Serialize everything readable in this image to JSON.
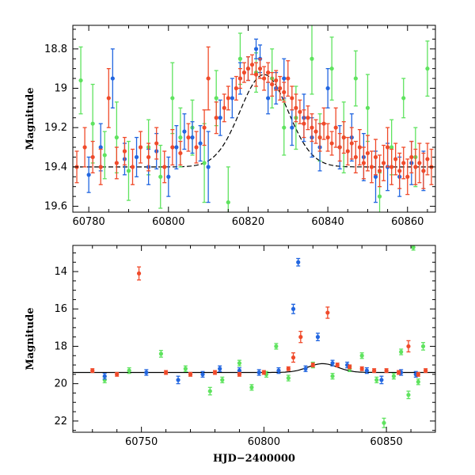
{
  "chart_data": [
    {
      "type": "scatter",
      "title": "",
      "xlabel": "",
      "ylabel": "Magnitude",
      "xlim": [
        60776,
        60867
      ],
      "ylim": [
        19.63,
        18.68
      ],
      "y_inverted": true,
      "xticks": [
        60780,
        60800,
        60820,
        60840,
        60860
      ],
      "xtick_labels": [
        "60780",
        "60800",
        "60820",
        "60840",
        "60860"
      ],
      "yticks": [
        18.8,
        19,
        19.2,
        19.4,
        19.6
      ],
      "ytick_labels": [
        "18.8",
        "19",
        "19.2",
        "19.4",
        "19.6"
      ],
      "grid": false,
      "legend": "none",
      "series": [
        {
          "color": "#5fe35f",
          "points": [
            [
              60778,
              18.96,
              0.17
            ],
            [
              60781,
              19.18,
              0.2
            ],
            [
              60784,
              19.34,
              0.12
            ],
            [
              60787,
              19.25,
              0.18
            ],
            [
              60790,
              19.42,
              0.15
            ],
            [
              60795,
              19.3,
              0.14
            ],
            [
              60798,
              19.45,
              0.16
            ],
            [
              60801,
              19.05,
              0.18
            ],
            [
              60803,
              19.25,
              0.15
            ],
            [
              60806,
              19.2,
              0.14
            ],
            [
              60809,
              19.38,
              0.2
            ],
            [
              60812,
              19.05,
              0.14
            ],
            [
              60815,
              19.58,
              0.18
            ],
            [
              60818,
              18.85,
              0.13
            ],
            [
              60822,
              18.92,
              0.1
            ],
            [
              60826,
              18.95,
              0.15
            ],
            [
              60829,
              19.2,
              0.14
            ],
            [
              60832,
              19.15,
              0.16
            ],
            [
              60836,
              18.85,
              0.18
            ],
            [
              60838,
              19.25,
              0.12
            ],
            [
              60841,
              18.9,
              0.16
            ],
            [
              60844,
              19.25,
              0.18
            ],
            [
              60847,
              18.95,
              0.14
            ],
            [
              60850,
              19.1,
              0.17
            ],
            [
              60853,
              19.55,
              0.12
            ],
            [
              60856,
              19.3,
              0.14
            ],
            [
              60859,
              19.05,
              0.1
            ],
            [
              60862,
              19.35,
              0.15
            ],
            [
              60865,
              18.9,
              0.14
            ]
          ]
        },
        {
          "color": "#2266e0",
          "points": [
            [
              60780,
              19.44,
              0.09
            ],
            [
              60783,
              19.3,
              0.12
            ],
            [
              60786,
              18.95,
              0.15
            ],
            [
              60789,
              19.36,
              0.08
            ],
            [
              60792,
              19.35,
              0.1
            ],
            [
              60795,
              19.4,
              0.09
            ],
            [
              60797,
              19.32,
              0.09
            ],
            [
              60800,
              19.45,
              0.1
            ],
            [
              60802,
              19.3,
              0.11
            ],
            [
              60804,
              19.22,
              0.09
            ],
            [
              60806,
              19.25,
              0.08
            ],
            [
              60808,
              19.28,
              0.09
            ],
            [
              60810,
              19.4,
              0.18
            ],
            [
              60813,
              19.15,
              0.09
            ],
            [
              60816,
              19.05,
              0.1
            ],
            [
              60818,
              18.95,
              0.08
            ],
            [
              60820,
              18.9,
              0.06
            ],
            [
              60822,
              18.8,
              0.05
            ],
            [
              60823,
              18.85,
              0.07
            ],
            [
              60825,
              19.05,
              0.08
            ],
            [
              60827,
              19.0,
              0.08
            ],
            [
              60829,
              18.95,
              0.1
            ],
            [
              60831,
              19.2,
              0.09
            ],
            [
              60834,
              19.15,
              0.12
            ],
            [
              60836,
              19.25,
              0.1
            ],
            [
              60838,
              19.3,
              0.12
            ],
            [
              60840,
              19.0,
              0.1
            ],
            [
              60843,
              19.3,
              0.11
            ],
            [
              60846,
              19.25,
              0.12
            ],
            [
              60849,
              19.35,
              0.12
            ],
            [
              60852,
              19.45,
              0.13
            ],
            [
              60855,
              19.4,
              0.12
            ],
            [
              60858,
              19.45,
              0.1
            ],
            [
              60861,
              19.38,
              0.11
            ],
            [
              60864,
              19.42,
              0.1
            ]
          ]
        },
        {
          "color": "#f04a2a",
          "points": [
            [
              60777,
              19.4,
              0.08
            ],
            [
              60779,
              19.3,
              0.1
            ],
            [
              60781,
              19.35,
              0.08
            ],
            [
              60783,
              19.4,
              0.09
            ],
            [
              60785,
              19.05,
              0.15
            ],
            [
              60787,
              19.38,
              0.08
            ],
            [
              60789,
              19.32,
              0.07
            ],
            [
              60791,
              19.4,
              0.09
            ],
            [
              60793,
              19.3,
              0.08
            ],
            [
              60795,
              19.35,
              0.07
            ],
            [
              60797,
              19.28,
              0.08
            ],
            [
              60799,
              19.4,
              0.08
            ],
            [
              60801,
              19.3,
              0.09
            ],
            [
              60803,
              19.33,
              0.06
            ],
            [
              60805,
              19.25,
              0.07
            ],
            [
              60807,
              19.3,
              0.08
            ],
            [
              60809,
              19.2,
              0.09
            ],
            [
              60810,
              18.95,
              0.16
            ],
            [
              60812,
              19.15,
              0.08
            ],
            [
              60814,
              19.1,
              0.07
            ],
            [
              60815,
              19.05,
              0.06
            ],
            [
              60817,
              19.0,
              0.06
            ],
            [
              60818,
              18.95,
              0.05
            ],
            [
              60819,
              18.92,
              0.05
            ],
            [
              60820,
              18.9,
              0.06
            ],
            [
              60821,
              18.88,
              0.05
            ],
            [
              60822,
              18.93,
              0.06
            ],
            [
              60823,
              18.9,
              0.05
            ],
            [
              60824,
              18.95,
              0.06
            ],
            [
              60825,
              18.92,
              0.05
            ],
            [
              60826,
              18.98,
              0.06
            ],
            [
              60827,
              18.96,
              0.05
            ],
            [
              60828,
              19.0,
              0.06
            ],
            [
              60829,
              19.02,
              0.05
            ],
            [
              60830,
              18.95,
              0.09
            ],
            [
              60831,
              19.05,
              0.06
            ],
            [
              60832,
              19.1,
              0.07
            ],
            [
              60833,
              19.12,
              0.06
            ],
            [
              60834,
              19.18,
              0.07
            ],
            [
              60835,
              19.15,
              0.06
            ],
            [
              60836,
              19.2,
              0.07
            ],
            [
              60837,
              19.22,
              0.06
            ],
            [
              60838,
              19.25,
              0.07
            ],
            [
              60839,
              19.18,
              0.08
            ],
            [
              60840,
              19.25,
              0.07
            ],
            [
              60841,
              19.28,
              0.06
            ],
            [
              60842,
              19.2,
              0.1
            ],
            [
              60843,
              19.3,
              0.07
            ],
            [
              60844,
              19.25,
              0.08
            ],
            [
              60845,
              19.32,
              0.07
            ],
            [
              60846,
              19.28,
              0.08
            ],
            [
              60847,
              19.35,
              0.08
            ],
            [
              60848,
              19.3,
              0.09
            ],
            [
              60849,
              19.38,
              0.08
            ],
            [
              60850,
              19.33,
              0.09
            ],
            [
              60851,
              19.4,
              0.08
            ],
            [
              60852,
              19.35,
              0.09
            ],
            [
              60853,
              19.42,
              0.08
            ],
            [
              60854,
              19.38,
              0.09
            ],
            [
              60855,
              19.3,
              0.1
            ],
            [
              60856,
              19.4,
              0.09
            ],
            [
              60857,
              19.36,
              0.08
            ],
            [
              60858,
              19.42,
              0.09
            ],
            [
              60859,
              19.38,
              0.08
            ],
            [
              60860,
              19.45,
              0.09
            ],
            [
              60861,
              19.35,
              0.08
            ],
            [
              60862,
              19.4,
              0.09
            ],
            [
              60863,
              19.38,
              0.1
            ],
            [
              60864,
              19.42,
              0.09
            ],
            [
              60865,
              19.36,
              0.08
            ],
            [
              60866,
              19.4,
              0.09
            ]
          ]
        }
      ],
      "model_curve": {
        "color": "#000000",
        "style": "dashed",
        "baseline": 19.4,
        "peak_mag": 18.93,
        "t0": 60824,
        "width": 8.5
      }
    },
    {
      "type": "scatter",
      "title": "",
      "xlabel": "HJD−2400000",
      "ylabel": "Magnitude",
      "xlim": [
        60722,
        60870
      ],
      "ylim": [
        22.6,
        12.6
      ],
      "y_inverted": true,
      "xticks": [
        60750,
        60800,
        60850
      ],
      "xtick_labels": [
        "60750",
        "60800",
        "60850"
      ],
      "yticks": [
        14,
        16,
        18,
        20,
        22
      ],
      "ytick_labels": [
        "14",
        "16",
        "18",
        "20",
        "22"
      ],
      "grid": false,
      "legend": "none",
      "series": [
        {
          "color": "#5fe35f",
          "points": [
            [
              60735,
              19.8,
              0.15
            ],
            [
              60745,
              19.3,
              0.15
            ],
            [
              60758,
              18.4,
              0.18
            ],
            [
              60768,
              19.2,
              0.15
            ],
            [
              60778,
              20.4,
              0.2
            ],
            [
              60783,
              19.8,
              0.15
            ],
            [
              60790,
              18.9,
              0.15
            ],
            [
              60795,
              20.2,
              0.15
            ],
            [
              60801,
              19.5,
              0.15
            ],
            [
              60805,
              18.0,
              0.15
            ],
            [
              60810,
              19.7,
              0.15
            ],
            [
              60820,
              19.0,
              0.15
            ],
            [
              60828,
              19.6,
              0.15
            ],
            [
              60835,
              19.2,
              0.15
            ],
            [
              60840,
              18.5,
              0.15
            ],
            [
              60846,
              19.8,
              0.15
            ],
            [
              60849,
              22.1,
              0.25
            ],
            [
              60853,
              19.6,
              0.15
            ],
            [
              60856,
              18.3,
              0.15
            ],
            [
              60859,
              20.6,
              0.2
            ],
            [
              60861,
              12.7,
              0.15
            ],
            [
              60863,
              19.9,
              0.15
            ],
            [
              60865,
              18.0,
              0.2
            ]
          ]
        },
        {
          "color": "#2266e0",
          "points": [
            [
              60735,
              19.6,
              0.15
            ],
            [
              60752,
              19.4,
              0.15
            ],
            [
              60765,
              19.8,
              0.2
            ],
            [
              60775,
              19.5,
              0.15
            ],
            [
              60782,
              19.2,
              0.15
            ],
            [
              60790,
              19.3,
              0.15
            ],
            [
              60798,
              19.4,
              0.15
            ],
            [
              60806,
              19.3,
              0.15
            ],
            [
              60812,
              16.0,
              0.25
            ],
            [
              60814,
              13.5,
              0.2
            ],
            [
              60817,
              19.2,
              0.15
            ],
            [
              60822,
              17.5,
              0.2
            ],
            [
              60828,
              18.9,
              0.15
            ],
            [
              60834,
              19.0,
              0.15
            ],
            [
              60842,
              19.3,
              0.15
            ],
            [
              60848,
              19.8,
              0.2
            ],
            [
              60856,
              19.4,
              0.15
            ],
            [
              60862,
              19.5,
              0.15
            ]
          ]
        },
        {
          "color": "#f04a2a",
          "points": [
            [
              60730,
              19.3,
              0.1
            ],
            [
              60749,
              14.1,
              0.35
            ],
            [
              60740,
              19.5,
              0.1
            ],
            [
              60760,
              19.4,
              0.1
            ],
            [
              60770,
              19.5,
              0.1
            ],
            [
              60780,
              19.4,
              0.1
            ],
            [
              60790,
              19.5,
              0.1
            ],
            [
              60800,
              19.4,
              0.1
            ],
            [
              60810,
              19.2,
              0.1
            ],
            [
              60812,
              18.6,
              0.25
            ],
            [
              60815,
              17.5,
              0.3
            ],
            [
              60820,
              19.0,
              0.1
            ],
            [
              60826,
              16.2,
              0.3
            ],
            [
              60830,
              19.0,
              0.1
            ],
            [
              60835,
              19.1,
              0.1
            ],
            [
              60840,
              19.2,
              0.1
            ],
            [
              60845,
              19.3,
              0.1
            ],
            [
              60850,
              19.3,
              0.1
            ],
            [
              60855,
              19.4,
              0.1
            ],
            [
              60859,
              18.0,
              0.3
            ],
            [
              60863,
              19.5,
              0.1
            ],
            [
              60866,
              19.3,
              0.1
            ]
          ]
        }
      ],
      "model_curve": {
        "color": "#000000",
        "style": "solid",
        "baseline": 19.4,
        "peak_mag": 18.93,
        "t0": 60824,
        "width": 8.5
      }
    }
  ]
}
